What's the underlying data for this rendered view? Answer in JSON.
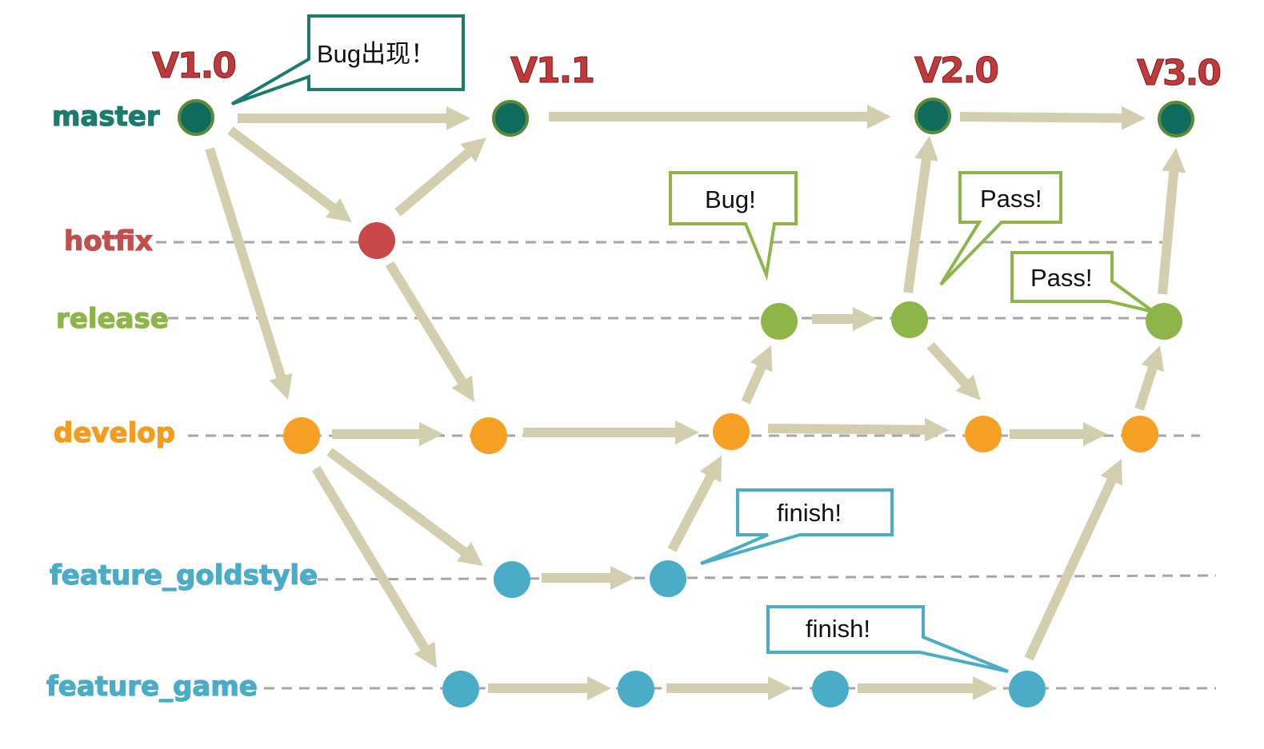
{
  "branches": {
    "master": {
      "label": "master",
      "color": "#1c7a6e"
    },
    "hotfix": {
      "label": "hotfix",
      "color": "#c0504d"
    },
    "release": {
      "label": "release",
      "color": "#8db54a"
    },
    "develop": {
      "label": "develop",
      "color": "#f39c1f"
    },
    "feature_goldstyle": {
      "label": "feature_goldstyle",
      "color": "#4aacc6"
    },
    "feature_game": {
      "label": "feature_game",
      "color": "#4aacc6"
    }
  },
  "versions": {
    "v1_0": "V1.0",
    "v1_1": "V1.1",
    "v2_0": "V2.0",
    "v3_0": "V3.0",
    "color": "#c0393b"
  },
  "callouts": {
    "bug_appears": {
      "text": "Bug出现！",
      "color": "#1c7a6e"
    },
    "release_bug": {
      "text": "Bug!",
      "color": "#8db54a"
    },
    "pass_1": {
      "text": "Pass!",
      "color": "#8db54a"
    },
    "pass_2": {
      "text": "Pass!",
      "color": "#8db54a"
    },
    "finish_goldstyle": {
      "text": "finish!",
      "color": "#4aacc6"
    },
    "finish_game": {
      "text": "finish!",
      "color": "#4aacc6"
    }
  },
  "colors": {
    "arrow": "#d3cfae",
    "track": "#a6a6a6",
    "master_fill": "#0f6b5c",
    "master_stroke": "#5a8a3a",
    "hotfix_fill": "#c9484a",
    "release_fill": "#8db54a",
    "develop_fill": "#f7a023",
    "feature_fill": "#4aacc6"
  }
}
